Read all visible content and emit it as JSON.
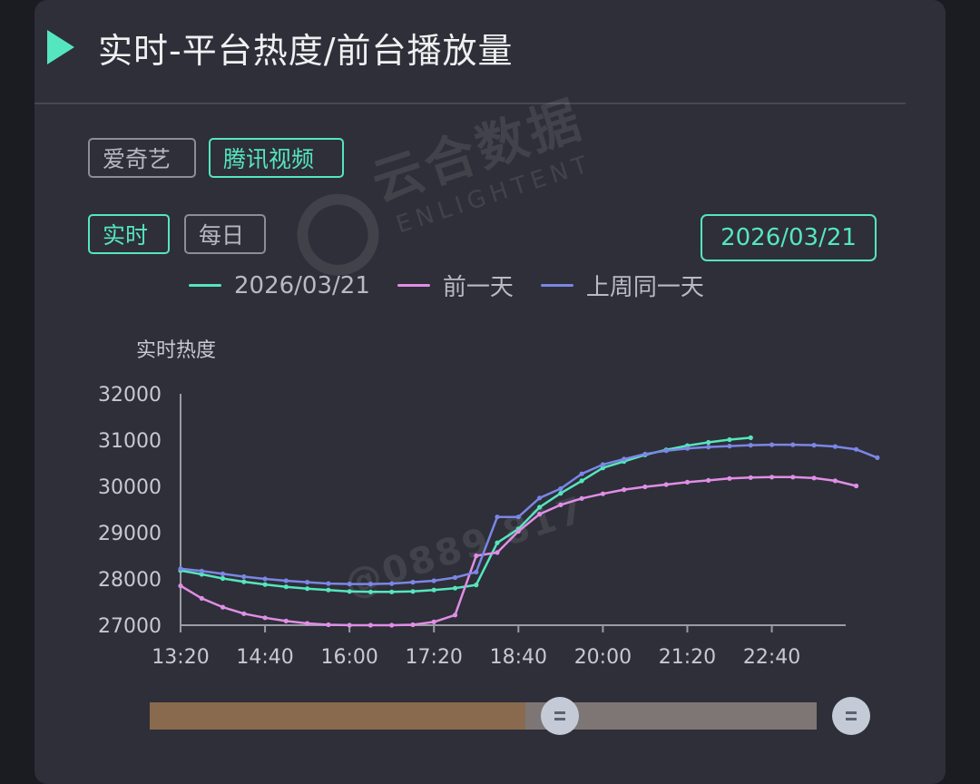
{
  "header": {
    "title": "实时-平台热度/前台播放量",
    "icon": "play-icon"
  },
  "platform_tabs": [
    {
      "label": "爱奇艺",
      "active": false
    },
    {
      "label": "腾讯视频",
      "active": true
    }
  ],
  "mode_tabs": [
    {
      "label": "实时",
      "active": true
    },
    {
      "label": "每日",
      "active": false
    }
  ],
  "date_picker": {
    "value": "2026/03/21"
  },
  "watermark": {
    "brand": "云合数据",
    "brand_en": "ENLIGHTENT",
    "id": "@0889 817"
  },
  "colors": {
    "accent": "#55e6bd",
    "series_today": "#55e6bd",
    "series_prev_day": "#e08ee6",
    "series_last_week": "#7b86e6",
    "background": "#2e2f38"
  },
  "chart_data": {
    "type": "line",
    "ylabel": "实时热度",
    "ylim": [
      27000,
      32000
    ],
    "y_ticks": [
      "32000",
      "31000",
      "30000",
      "29000",
      "28000",
      "27000"
    ],
    "x_ticks": [
      "13:20",
      "14:40",
      "16:00",
      "17:20",
      "18:40",
      "20:00",
      "21:20",
      "22:40"
    ],
    "x_range_minutes": [
      800,
      1430
    ],
    "sample_interval_minutes": 20,
    "grid": false,
    "legend_position": "top",
    "series": [
      {
        "name": "2026/03/21",
        "color": "#55e6bd",
        "values": [
          28180,
          28100,
          28010,
          27940,
          27880,
          27830,
          27790,
          27760,
          27730,
          27720,
          27720,
          27730,
          27760,
          27800,
          27870,
          28780,
          29080,
          29550,
          29850,
          30120,
          30400,
          30540,
          30680,
          30790,
          30880,
          30950,
          31010,
          31050
        ]
      },
      {
        "name": "前一天",
        "color": "#e08ee6",
        "values": [
          27850,
          27580,
          27390,
          27250,
          27160,
          27090,
          27040,
          27010,
          27000,
          27000,
          27000,
          27010,
          27070,
          27220,
          28500,
          28570,
          29030,
          29400,
          29600,
          29740,
          29840,
          29930,
          29990,
          30040,
          30090,
          30130,
          30170,
          30190,
          30200,
          30200,
          30180,
          30120,
          30010
        ]
      },
      {
        "name": "上周同一天",
        "color": "#7b86e6",
        "values": [
          28220,
          28170,
          28110,
          28050,
          28000,
          27960,
          27930,
          27900,
          27890,
          27890,
          27900,
          27930,
          27960,
          28030,
          28150,
          29340,
          29340,
          29750,
          29950,
          30270,
          30470,
          30590,
          30700,
          30770,
          30820,
          30850,
          30870,
          30890,
          30900,
          30900,
          30890,
          30860,
          30800,
          30620
        ]
      }
    ]
  },
  "range_slider": {
    "start_fraction": 0.56,
    "end_fraction": 1.0
  }
}
